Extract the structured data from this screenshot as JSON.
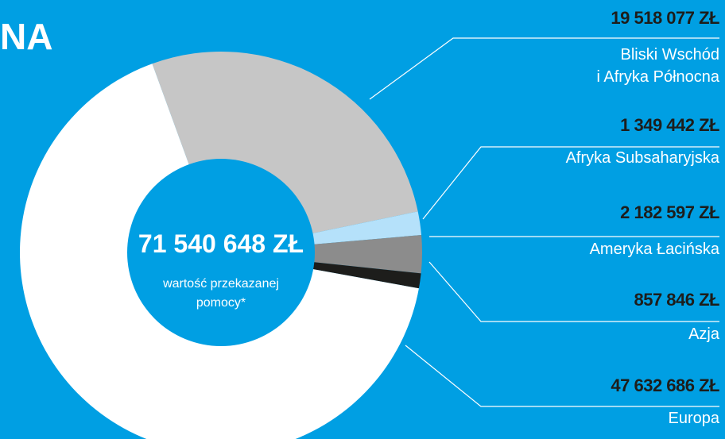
{
  "chart_data": {
    "type": "pie",
    "donut": true,
    "title": "NA",
    "categories": [
      [
        "Bliski Wschód",
        "i Afryka Północna"
      ],
      [
        "Afryka Subsaharyjska"
      ],
      [
        "Ameryka Łacińska"
      ],
      [
        "Azja"
      ],
      [
        "Europa"
      ]
    ],
    "values": [
      19518077,
      1349442,
      2182597,
      857846,
      47632686
    ],
    "value_labels": [
      "19 518 077 ZŁ",
      "1 349 442 ZŁ",
      "2 182 597 ZŁ",
      "857 846 ZŁ",
      "47 632 686 ZŁ"
    ],
    "colors": [
      "#c6c6c6",
      "#b5e1fa",
      "#8c8c8c",
      "#1d1d1b",
      "#ffffff"
    ],
    "total": {
      "value": 71540648,
      "label": "71 540 648 ZŁ"
    },
    "center_text": [
      "wartość przekazanej",
      "pomocy*"
    ],
    "background": "#009fe3"
  }
}
